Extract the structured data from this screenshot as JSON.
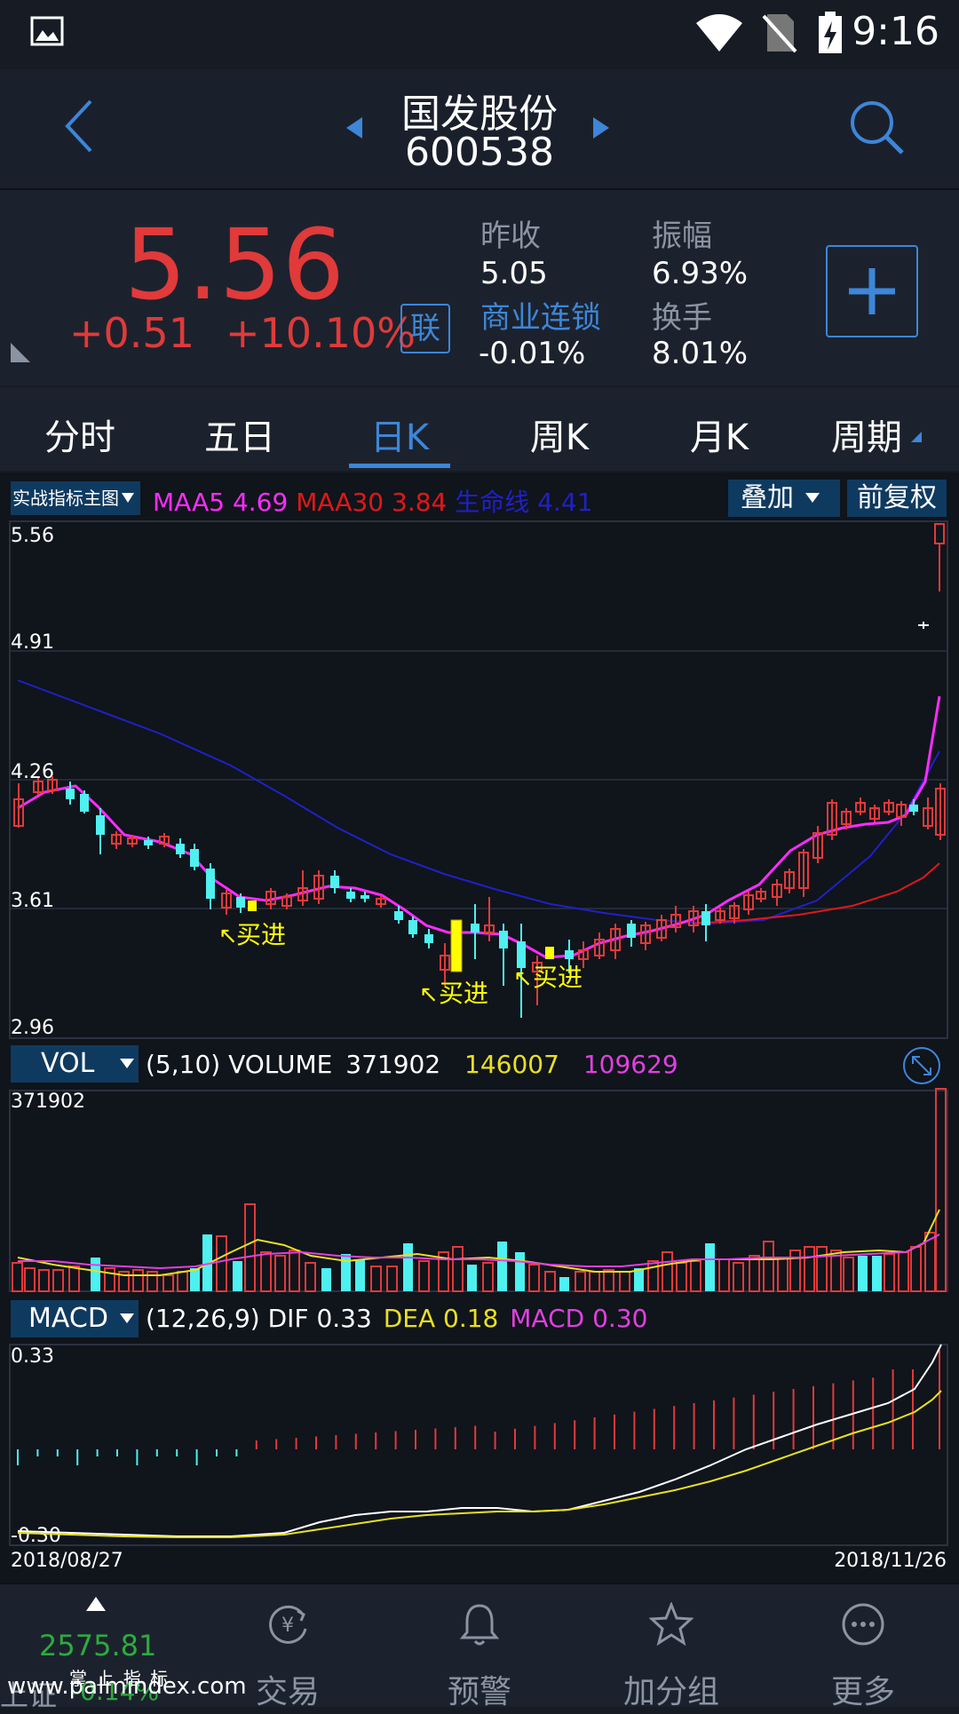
{
  "status": {
    "time": "9:16"
  },
  "header": {
    "name": "国发股份",
    "code": "600538"
  },
  "quote": {
    "price": "5.56",
    "change": "+0.51",
    "change_pct": "+10.10%",
    "lian_label": "联",
    "prev_close_label": "昨收",
    "prev_close": "5.05",
    "amplitude_label": "振幅",
    "amplitude": "6.93%",
    "sector_label": "商业连锁",
    "sector_value": "-0.01%",
    "turnover_label": "换手",
    "turnover": "8.01%"
  },
  "tabs": [
    {
      "label": "分时"
    },
    {
      "label": "五日"
    },
    {
      "label": "日K"
    },
    {
      "label": "周K"
    },
    {
      "label": "月K"
    },
    {
      "label": "周期"
    }
  ],
  "main_chart": {
    "indicator_btn": "实战指标主图",
    "ma5_label": "MAA5",
    "ma5_value": "4.69",
    "ma30_label": "MAA30",
    "ma30_value": "3.84",
    "life_label": "生命线",
    "life_value": "4.41",
    "overlay_btn": "叠加",
    "adjust_btn": "前复权",
    "y_ticks": [
      "5.56",
      "4.91",
      "4.26",
      "3.61",
      "2.96"
    ],
    "buy_signal": "买进"
  },
  "volume_chart": {
    "btn": "VOL",
    "params": "(5,10) VOLUME",
    "volume": "371902",
    "ma5": "146007",
    "ma10": "109629",
    "y_top": "371902"
  },
  "macd_chart": {
    "btn": "MACD",
    "params": "(12,26,9) DIF",
    "dif": "0.33",
    "dea_label": "DEA",
    "dea": "0.18",
    "macd_label": "MACD",
    "macd": "0.30",
    "y_top": "0.33",
    "y_bottom": "-0.30"
  },
  "dates": {
    "start": "2018/08/27",
    "end": "2018/11/26"
  },
  "bottom_nav": {
    "index_value": "2575.81",
    "index_name": "上证",
    "index_change": "-0.14%",
    "watermark_top": "掌 上 指 标",
    "watermark": "www.palmindex.com",
    "items": [
      {
        "label": "交易"
      },
      {
        "label": "预警"
      },
      {
        "label": "加分组"
      },
      {
        "label": "更多"
      }
    ]
  },
  "colors": {
    "up": "#e03a3a",
    "down": "#4ef0f0",
    "accent": "#3d86d8",
    "ma5": "#ff2cff",
    "ma30": "#e01818",
    "life": "#2020c8",
    "signal": "#ffff00"
  },
  "chart_data": [
    {
      "type": "candlestick",
      "title": "日K",
      "ylim": [
        2.96,
        5.56
      ],
      "y_ticks": [
        5.56,
        4.91,
        4.26,
        3.61,
        2.96
      ],
      "x_range": [
        "2018/08/27",
        "2018/11/26"
      ],
      "series": [
        {
          "name": "MAA5",
          "last": 4.69
        },
        {
          "name": "MAA30",
          "last": 3.84
        },
        {
          "name": "生命线",
          "last": 4.41
        }
      ],
      "annotations": [
        "买进",
        "买进",
        "买进"
      ]
    },
    {
      "type": "bar",
      "title": "VOL",
      "ylim": [
        0,
        371902
      ],
      "series": [
        {
          "name": "VOLUME",
          "last": 371902
        },
        {
          "name": "MA5",
          "last": 146007
        },
        {
          "name": "MA10",
          "last": 109629
        }
      ]
    },
    {
      "type": "line",
      "title": "MACD",
      "ylim": [
        -0.3,
        0.33
      ],
      "series": [
        {
          "name": "DIF",
          "last": 0.33
        },
        {
          "name": "DEA",
          "last": 0.18
        },
        {
          "name": "MACD",
          "last": 0.3
        }
      ]
    }
  ]
}
